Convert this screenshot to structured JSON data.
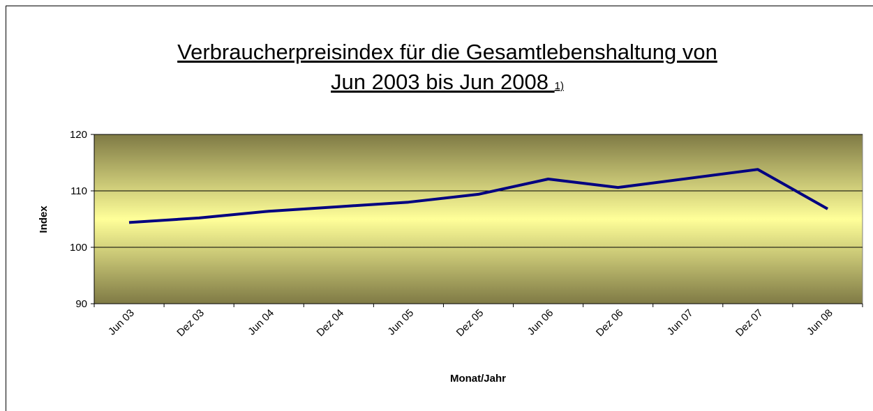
{
  "chart_data": {
    "type": "line",
    "title": [
      "Verbraucherpreisindex für die Gesamtlebenshaltung von",
      "Jun 2003 bis Jun 2008"
    ],
    "title_note": "1)",
    "x_label": "Monat/Jahr",
    "y_label": "Index",
    "categories": [
      "Jun 03",
      "Dez 03",
      "Jun 04",
      "Dez 04",
      "Jun 05",
      "Dez 05",
      "Jun 06",
      "Dez 06",
      "Jun 07",
      "Dez 07",
      "Jun 08"
    ],
    "series": [
      {
        "name": "Index",
        "color": "#000080",
        "values": [
          104.4,
          105.2,
          106.4,
          107.2,
          108.0,
          109.4,
          112.1,
          110.6,
          112.2,
          113.8,
          106.8
        ]
      }
    ],
    "ylim": [
      90,
      120
    ],
    "yticks": [
      90,
      100,
      110,
      120
    ],
    "grid": true
  }
}
